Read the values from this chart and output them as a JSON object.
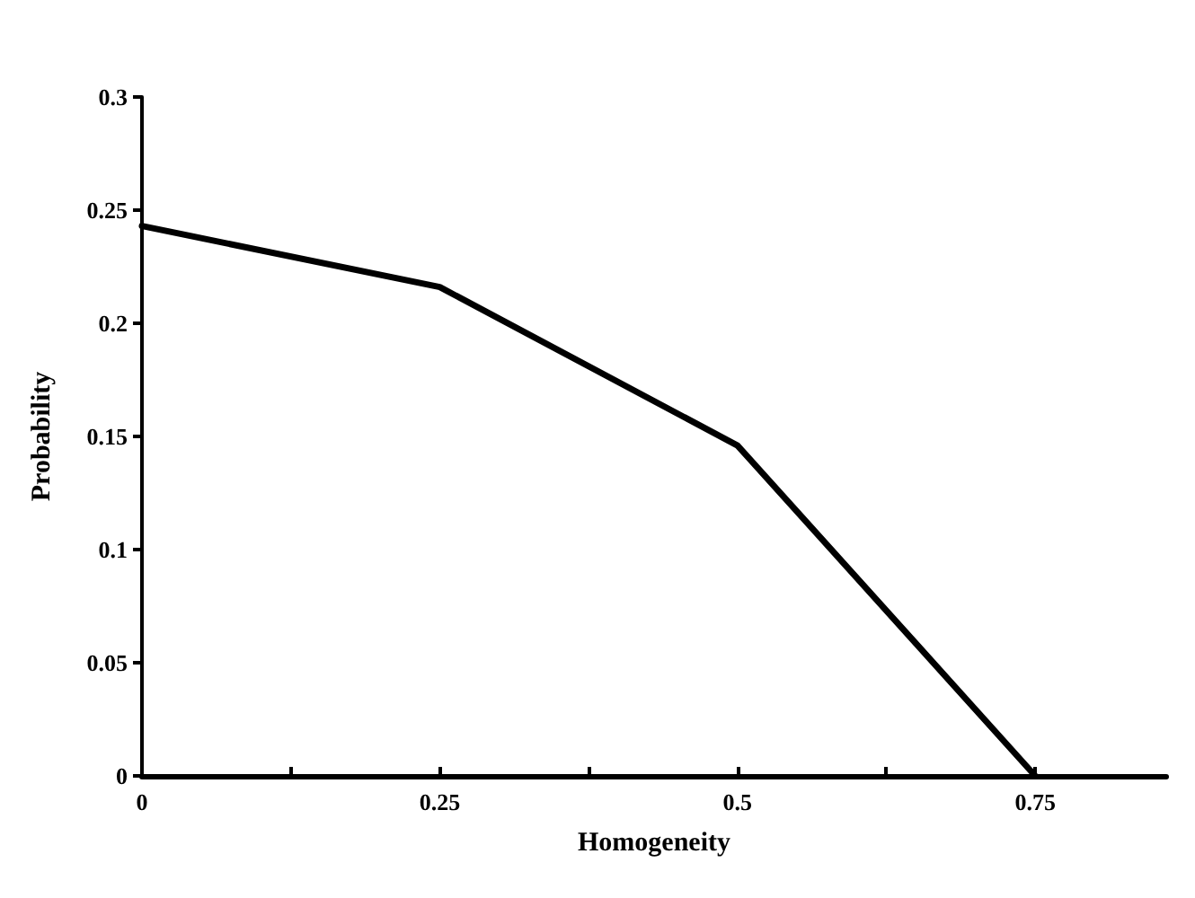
{
  "chart_data": {
    "type": "line",
    "xlabel": "Homogeneity",
    "ylabel": "Probability",
    "x": [
      0,
      0.25,
      0.5,
      0.75
    ],
    "series": [
      {
        "color": "#000000",
        "values": [
          0.243,
          0.216,
          0.146,
          0
        ]
      }
    ],
    "xlim": [
      0,
      0.86
    ],
    "xticks": [
      0,
      {
        "value": 0.125,
        "label": null
      },
      0.25,
      {
        "value": 0.375,
        "label": null
      },
      0.5,
      {
        "value": 0.625,
        "label": null
      },
      0.75
    ],
    "ylim": [
      0,
      0.3
    ],
    "yticks": [
      0,
      0.05,
      0.1,
      0.15,
      0.2,
      0.25,
      0.3
    ],
    "grid": false,
    "marker": "none",
    "line_style": "solid"
  }
}
